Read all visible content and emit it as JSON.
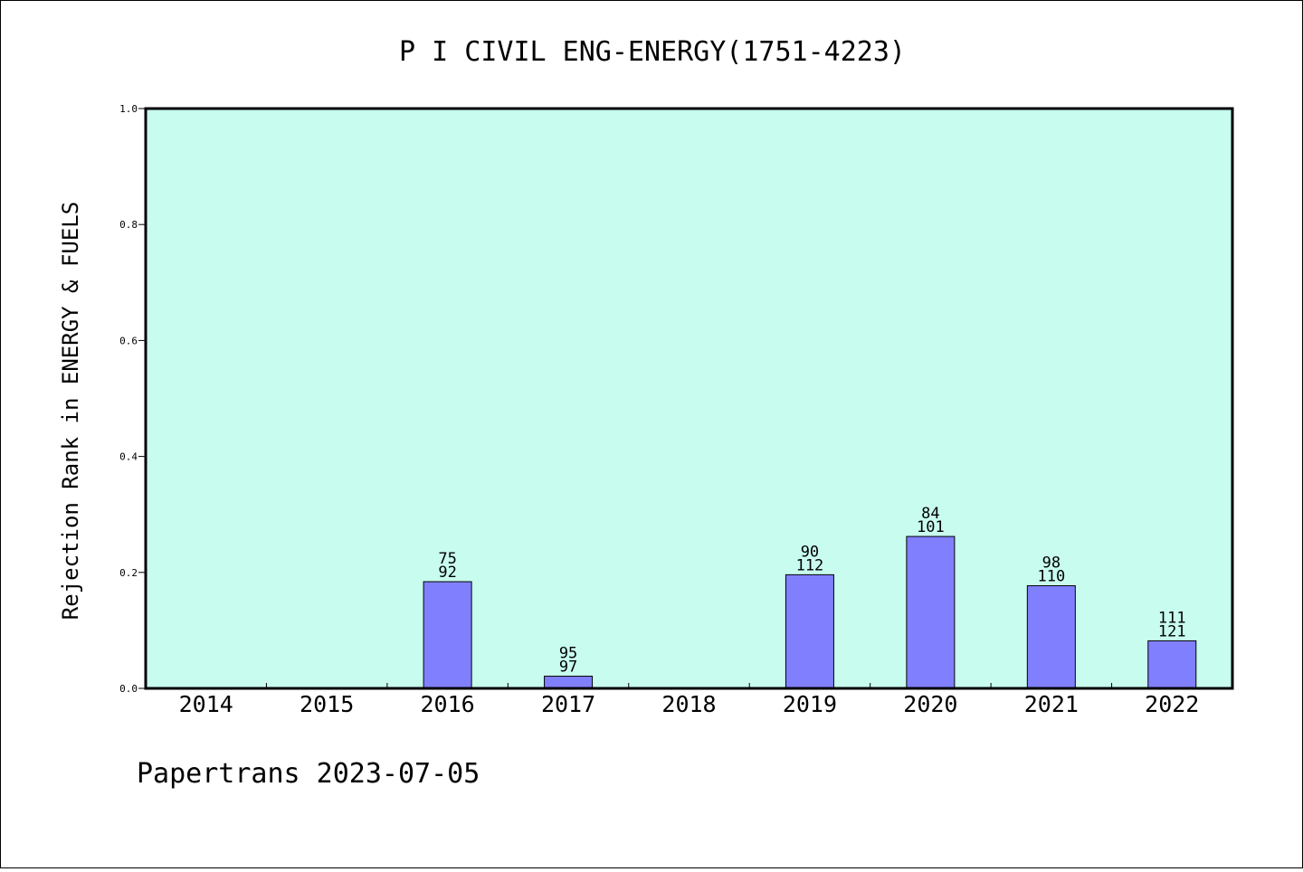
{
  "chart_data": {
    "type": "bar",
    "title": "P I CIVIL ENG-ENERGY(1751-4223)",
    "ylabel": "Rejection Rank in ENERGY & FUELS",
    "xlabel": "",
    "ylim": [
      0,
      1.0
    ],
    "yticks": [
      "0.0",
      "0.2",
      "0.4",
      "0.6",
      "0.8",
      "1.0"
    ],
    "categories": [
      "2014",
      "2015",
      "2016",
      "2017",
      "2018",
      "2019",
      "2020",
      "2021",
      "2022"
    ],
    "values": [
      0,
      0,
      0.184,
      0.021,
      0,
      0.196,
      0.262,
      0.177,
      0.082
    ],
    "labels_top": [
      "",
      "",
      "75",
      "95",
      "",
      "90",
      "84",
      "98",
      "111"
    ],
    "labels_bottom": [
      "",
      "",
      "92",
      "97",
      "",
      "112",
      "101",
      "110",
      "121"
    ],
    "colors": {
      "plot_bg": "#c8fcee",
      "bar": "#8080ff",
      "frame": "#000000"
    },
    "grid": false
  },
  "footer": {
    "text": "Papertrans 2023-07-05"
  }
}
